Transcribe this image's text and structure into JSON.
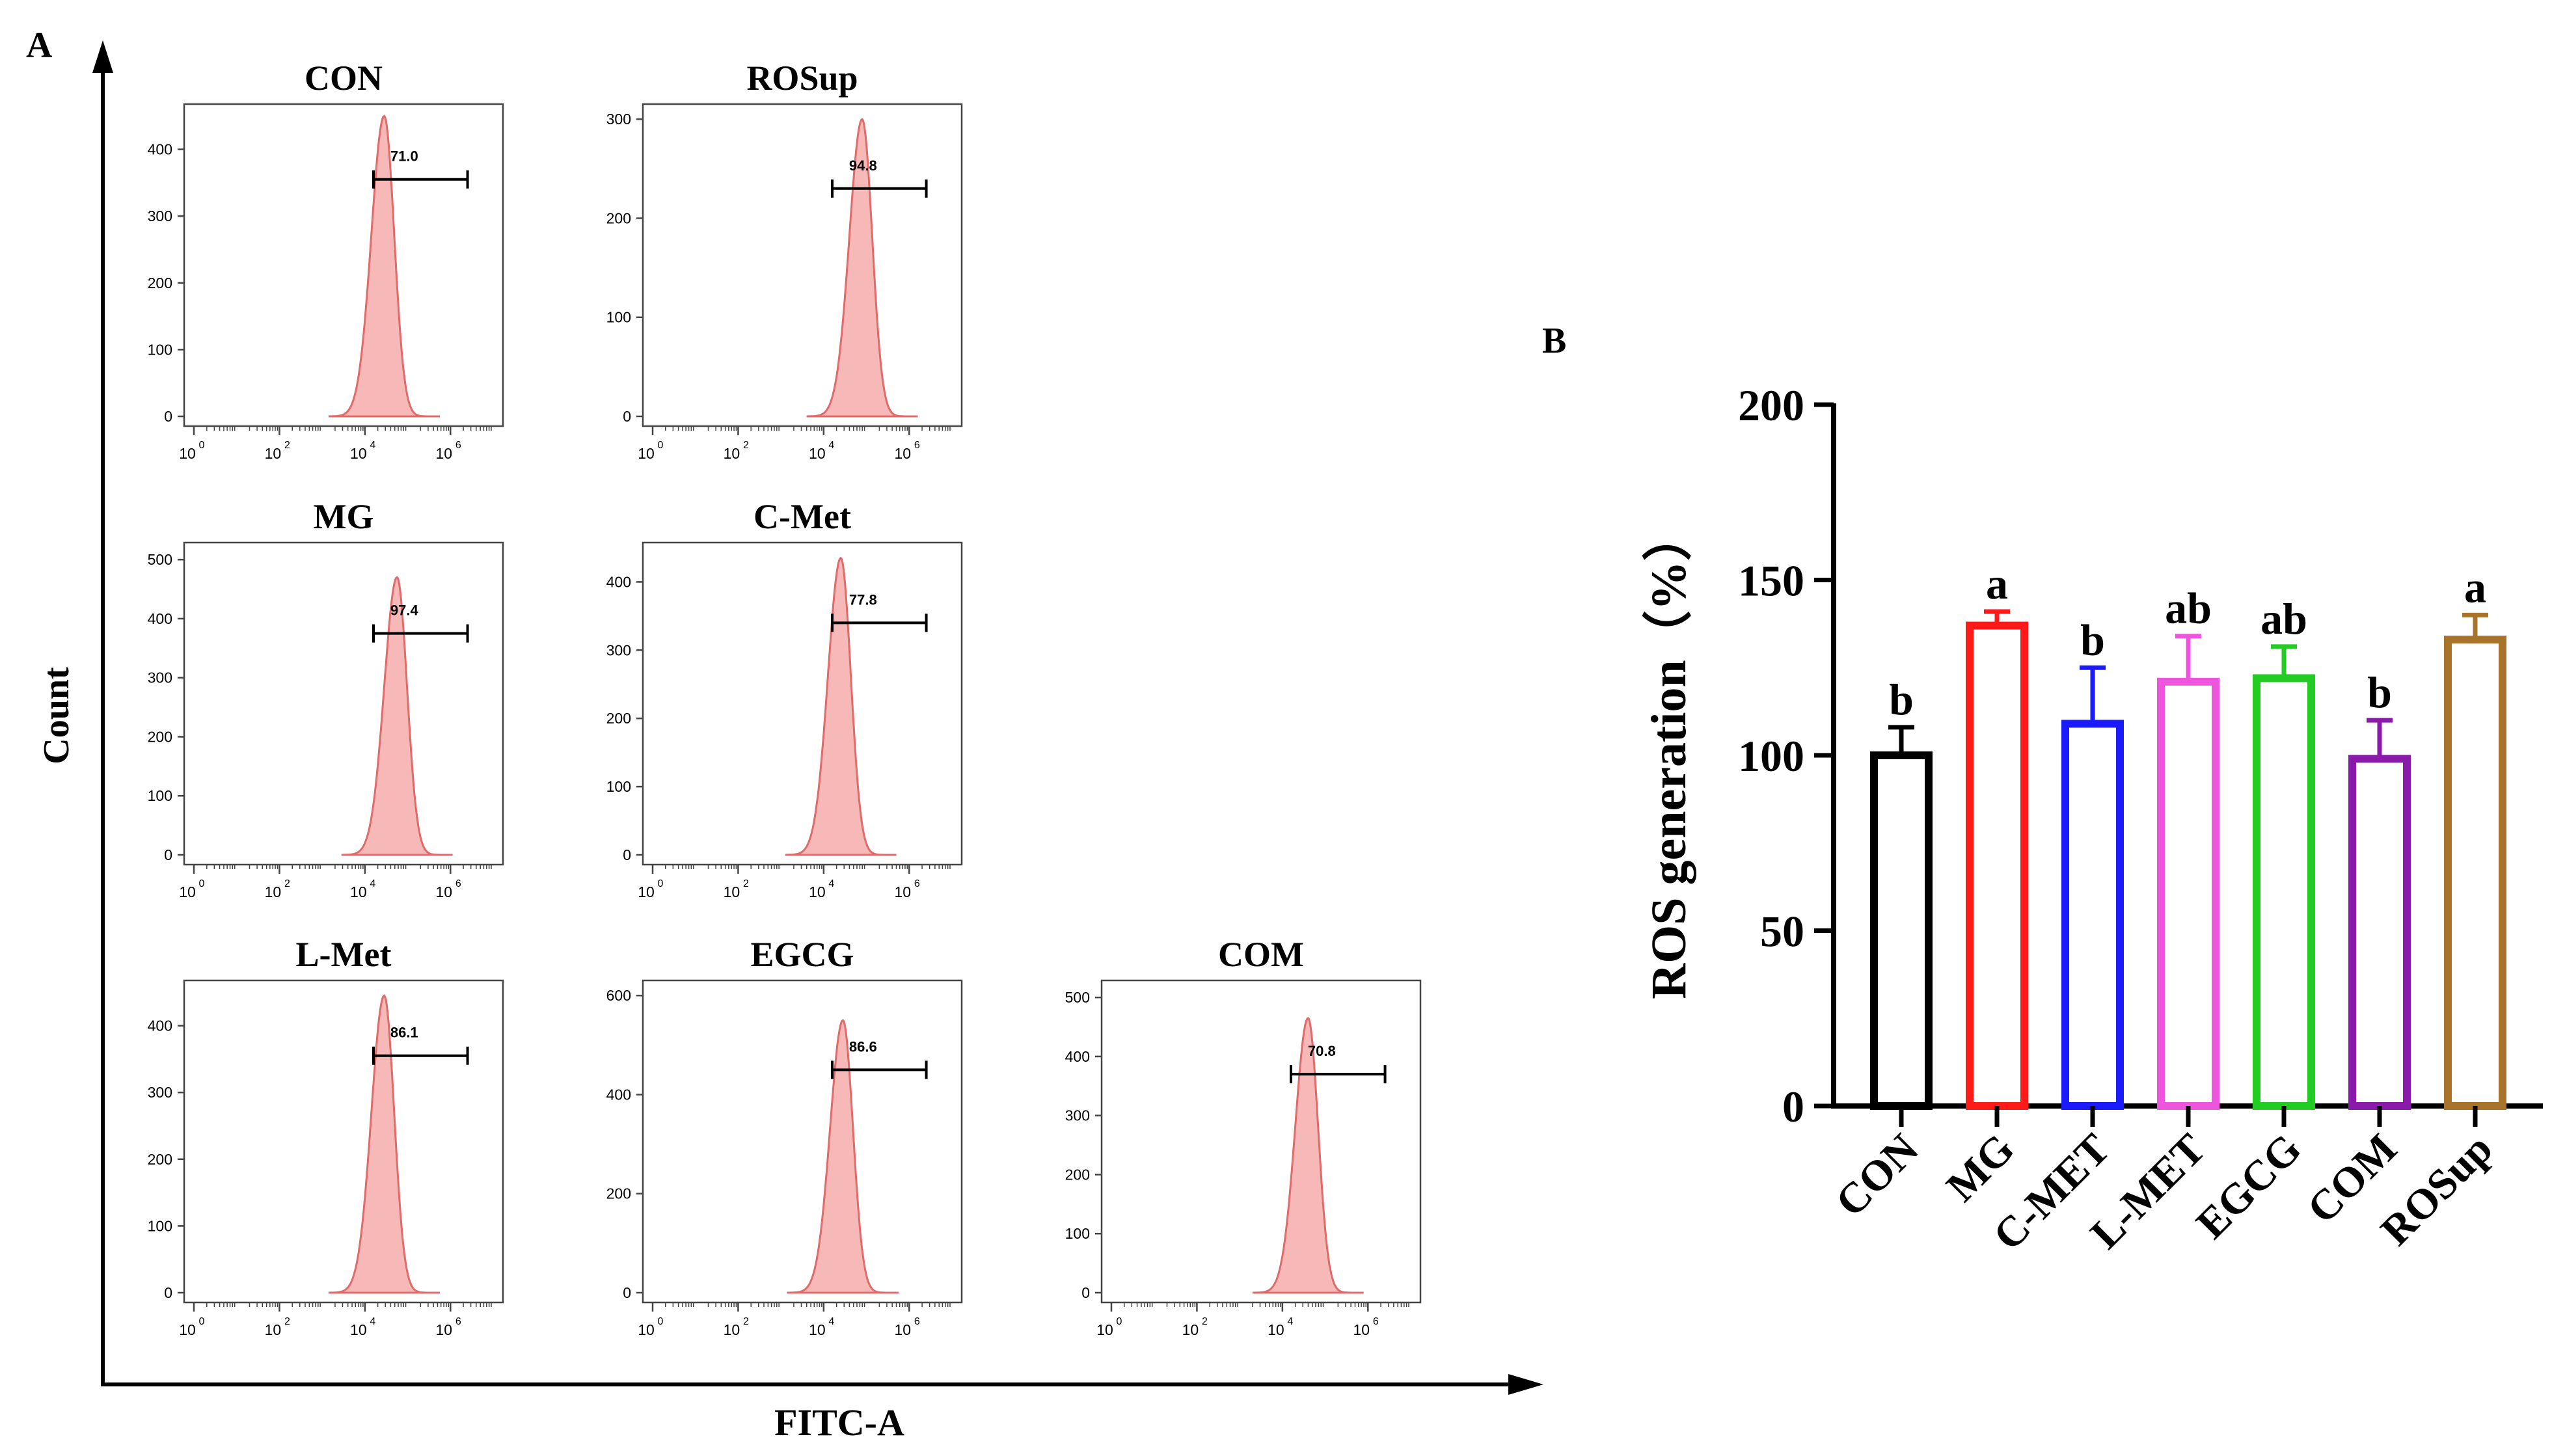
{
  "figure": {
    "panel_a_label": "A",
    "panel_b_label": "B",
    "shared_y_label": "Count",
    "shared_x_label": "FITC-A"
  },
  "chart_data": [
    {
      "type": "area",
      "panel": "A",
      "title": "CON",
      "gate_value": "71.0",
      "yticks": [
        0,
        100,
        200,
        300,
        400
      ],
      "ylim": [
        0,
        460
      ],
      "xlim_log10": [
        0,
        7
      ],
      "xtick_labels": [
        "10",
        "10",
        "10",
        "10"
      ],
      "xtick_exponents": [
        "0",
        "2",
        "4",
        "6"
      ],
      "peak_log10": 4.45,
      "peak_count": 450,
      "gate_log10": [
        4.2,
        6.4
      ],
      "gate_count": 355
    },
    {
      "type": "area",
      "panel": "A",
      "title": "ROSup",
      "gate_value": "94.8",
      "yticks": [
        0,
        100,
        200,
        300
      ],
      "ylim": [
        0,
        310
      ],
      "xlim_log10": [
        0,
        7
      ],
      "xtick_labels": [
        "10",
        "10",
        "10",
        "10"
      ],
      "xtick_exponents": [
        "0",
        "2",
        "4",
        "6"
      ],
      "peak_log10": 4.9,
      "peak_count": 300,
      "gate_log10": [
        4.2,
        6.4
      ],
      "gate_count": 230
    },
    {
      "type": "area",
      "panel": "A",
      "title": "MG",
      "gate_value": "97.4",
      "yticks": [
        0,
        100,
        200,
        300,
        400,
        500
      ],
      "ylim": [
        0,
        520
      ],
      "xlim_log10": [
        0,
        7
      ],
      "xtick_labels": [
        "10",
        "10",
        "10",
        "10"
      ],
      "xtick_exponents": [
        "0",
        "2",
        "4",
        "6"
      ],
      "peak_log10": 4.75,
      "peak_count": 470,
      "gate_log10": [
        4.2,
        6.4
      ],
      "gate_count": 375
    },
    {
      "type": "area",
      "panel": "A",
      "title": "C-Met",
      "gate_value": "77.8",
      "yticks": [
        0,
        100,
        200,
        300,
        400
      ],
      "ylim": [
        0,
        450
      ],
      "xlim_log10": [
        0,
        7
      ],
      "xtick_labels": [
        "10",
        "10",
        "10",
        "10"
      ],
      "xtick_exponents": [
        "0",
        "2",
        "4",
        "6"
      ],
      "peak_log10": 4.4,
      "peak_count": 435,
      "gate_log10": [
        4.2,
        6.4
      ],
      "gate_count": 340
    },
    {
      "type": "area",
      "panel": "A",
      "title": "L-Met",
      "gate_value": "86.1",
      "yticks": [
        0,
        100,
        200,
        300,
        400
      ],
      "ylim": [
        0,
        460
      ],
      "xlim_log10": [
        0,
        7
      ],
      "xtick_labels": [
        "10",
        "10",
        "10",
        "10"
      ],
      "xtick_exponents": [
        "0",
        "2",
        "4",
        "6"
      ],
      "peak_log10": 4.45,
      "peak_count": 445,
      "gate_log10": [
        4.2,
        6.4
      ],
      "gate_count": 355
    },
    {
      "type": "area",
      "panel": "A",
      "title": "EGCG",
      "gate_value": "86.6",
      "yticks": [
        0,
        200,
        400,
        600
      ],
      "ylim": [
        0,
        620
      ],
      "xlim_log10": [
        0,
        7
      ],
      "xtick_labels": [
        "10",
        "10",
        "10",
        "10"
      ],
      "xtick_exponents": [
        "0",
        "2",
        "4",
        "6"
      ],
      "peak_log10": 4.45,
      "peak_count": 550,
      "gate_log10": [
        4.2,
        6.4
      ],
      "gate_count": 450
    },
    {
      "type": "area",
      "panel": "A",
      "title": "COM",
      "gate_value": "70.8",
      "yticks": [
        0,
        100,
        200,
        300,
        400,
        500
      ],
      "ylim": [
        0,
        520
      ],
      "xlim_log10": [
        0,
        7
      ],
      "xtick_labels": [
        "10",
        "10",
        "10",
        "10"
      ],
      "xtick_exponents": [
        "0",
        "2",
        "4",
        "6"
      ],
      "peak_log10": 4.6,
      "peak_count": 465,
      "gate_log10": [
        4.2,
        6.4
      ],
      "gate_count": 370
    },
    {
      "type": "bar",
      "panel": "B",
      "ylabel": "ROS generation（%）",
      "xlabel": "",
      "ylim": [
        0,
        200
      ],
      "yticks": [
        0,
        50,
        100,
        150,
        200
      ],
      "categories": [
        "CON",
        "MG",
        "C-MET",
        "L-MET",
        "EGCG",
        "COM",
        "ROSup"
      ],
      "values": [
        100,
        137,
        109,
        121,
        122,
        99,
        133
      ],
      "errors": [
        8,
        4,
        16,
        13,
        9,
        11,
        7
      ],
      "significance": [
        "b",
        "a",
        "b",
        "ab",
        "ab",
        "b",
        "a"
      ],
      "colors": [
        "#000000",
        "#ff1a1a",
        "#1a1aff",
        "#ee55dd",
        "#22cc22",
        "#8a1aaa",
        "#a8742c"
      ]
    }
  ]
}
